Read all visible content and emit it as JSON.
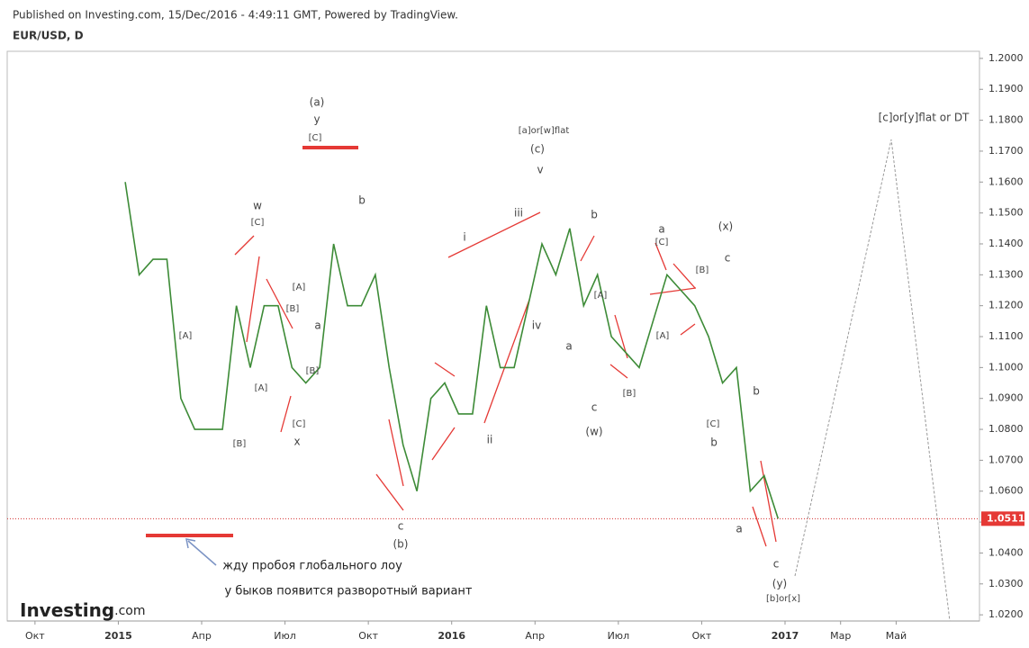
{
  "header": {
    "published": "Published on Investing.com, 15/Dec/2016 - 4:49:11 GMT, Powered by TradingView.",
    "symbol": "EUR/USD, D",
    "logo": "Investing",
    "logo_suffix": ".com"
  },
  "chart_data": {
    "type": "line",
    "categories": [
      null,
      null,
      "Окт",
      null,
      null,
      null,
      null,
      null,
      "2015",
      null,
      null,
      null,
      null,
      null,
      "Апр",
      null,
      null,
      null,
      null,
      null,
      "Июл",
      null,
      null,
      null,
      null,
      null,
      "Окт",
      null,
      null,
      null,
      null,
      null,
      "2016",
      null,
      null,
      null,
      null,
      null,
      "Апр",
      null,
      null,
      null,
      null,
      null,
      "Июл",
      null,
      null,
      null,
      null,
      null,
      "Окт",
      null,
      null,
      null,
      null,
      null,
      "2017",
      null,
      null,
      null,
      "Мар",
      null,
      null,
      null,
      "Май",
      null,
      null,
      null,
      null,
      null
    ],
    "series": [
      {
        "name": "EUR/USD",
        "color": "#3d8b37",
        "values": [
          null,
          null,
          null,
          null,
          null,
          null,
          null,
          null,
          1.16,
          1.13,
          1.135,
          1.135,
          1.09,
          1.08,
          1.08,
          1.08,
          1.12,
          1.1,
          1.12,
          1.12,
          1.1,
          1.095,
          1.1,
          1.14,
          1.12,
          1.12,
          1.13,
          1.1,
          1.075,
          1.06,
          1.09,
          1.095,
          1.085,
          1.085,
          1.12,
          1.1,
          1.1,
          1.12,
          1.14,
          1.13,
          1.145,
          1.12,
          1.13,
          1.11,
          1.105,
          1.1,
          1.115,
          1.13,
          1.125,
          1.12,
          1.11,
          1.095,
          1.1,
          1.06,
          1.065,
          1.0511,
          null,
          null,
          null,
          null,
          null,
          null,
          null,
          null,
          null,
          null,
          null,
          null,
          null,
          null
        ]
      }
    ],
    "last_price": 1.0511,
    "ylim": [
      1.018,
      1.2023
    ],
    "yticks": [
      {
        "value": 1.02,
        "label": "1.0200"
      },
      {
        "value": 1.03,
        "label": "1.0300"
      },
      {
        "value": 1.04,
        "label": "1.0400"
      },
      {
        "value": 1.05,
        "label": "1.0500"
      },
      {
        "value": 1.06,
        "label": "1.0600"
      },
      {
        "value": 1.07,
        "label": "1.0700"
      },
      {
        "value": 1.08,
        "label": "1.0800"
      },
      {
        "value": 1.09,
        "label": "1.0900"
      },
      {
        "value": 1.1,
        "label": "1.1000"
      },
      {
        "value": 1.11,
        "label": "1.1100"
      },
      {
        "value": 1.12,
        "label": "1.1200"
      },
      {
        "value": 1.13,
        "label": "1.1300"
      },
      {
        "value": 1.14,
        "label": "1.1400"
      },
      {
        "value": 1.15,
        "label": "1.1500"
      },
      {
        "value": 1.16,
        "label": "1.1600"
      },
      {
        "value": 1.17,
        "label": "1.1700"
      },
      {
        "value": 1.18,
        "label": "1.1800"
      },
      {
        "value": 1.19,
        "label": "1.1900"
      },
      {
        "value": 1.2,
        "label": "1.2000"
      }
    ],
    "annotations": [
      "(a)",
      "y",
      "[C]",
      "w",
      "[C]",
      "[A]",
      "[B]",
      "[A]",
      "[B]",
      "a",
      "[B]",
      "[A]",
      "[C]",
      "x",
      "b",
      "c",
      "(b)",
      "i",
      "iii",
      "ii",
      "iv",
      "[a]or[w]flat",
      "(c)",
      "v",
      "b",
      "[A]",
      "a",
      "c",
      "(w)",
      "[B]",
      "a",
      "[C]",
      "[B]",
      "[A]",
      "(x)",
      "c",
      "[C]",
      "b",
      "b",
      "a",
      "c",
      "(y)",
      "[b]or[x]",
      "[c]or[y]flat or DT",
      "жду пробоя глобального лоу",
      "у быков появится разворотный вариант"
    ]
  }
}
